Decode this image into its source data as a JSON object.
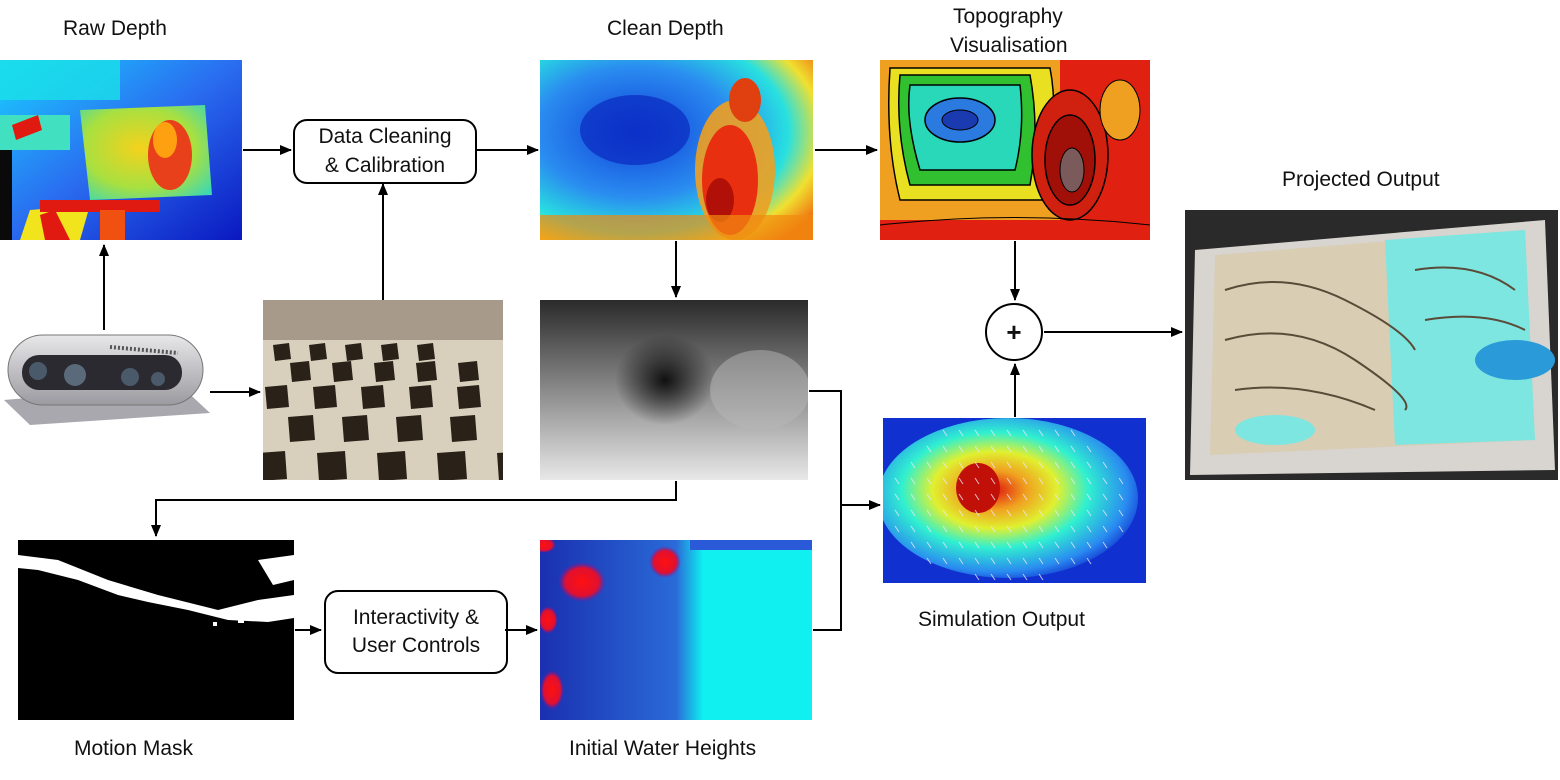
{
  "labels": {
    "raw_depth": "Raw Depth",
    "clean_depth": "Clean Depth",
    "topography_line1": "Topography",
    "topography_line2": "Visualisation",
    "projected_output": "Projected Output",
    "simulation_output": "Simulation Output",
    "motion_mask": "Motion Mask",
    "initial_water_heights": "Initial Water Heights"
  },
  "boxes": {
    "cleaning_line1": "Data Cleaning",
    "cleaning_line2": "& Calibration",
    "interactivity_line1": "Interactivity &",
    "interactivity_line2": "User Controls"
  },
  "combiner_symbol": "+",
  "colors": {
    "arrow": "#000000",
    "jet_blue": "#0a2bd0",
    "jet_cyan": "#12e8f0",
    "jet_yellow": "#f2e41c",
    "jet_red": "#e01a10",
    "sand": "#d9cdb4",
    "water_cyan": "#7ee6e0"
  }
}
